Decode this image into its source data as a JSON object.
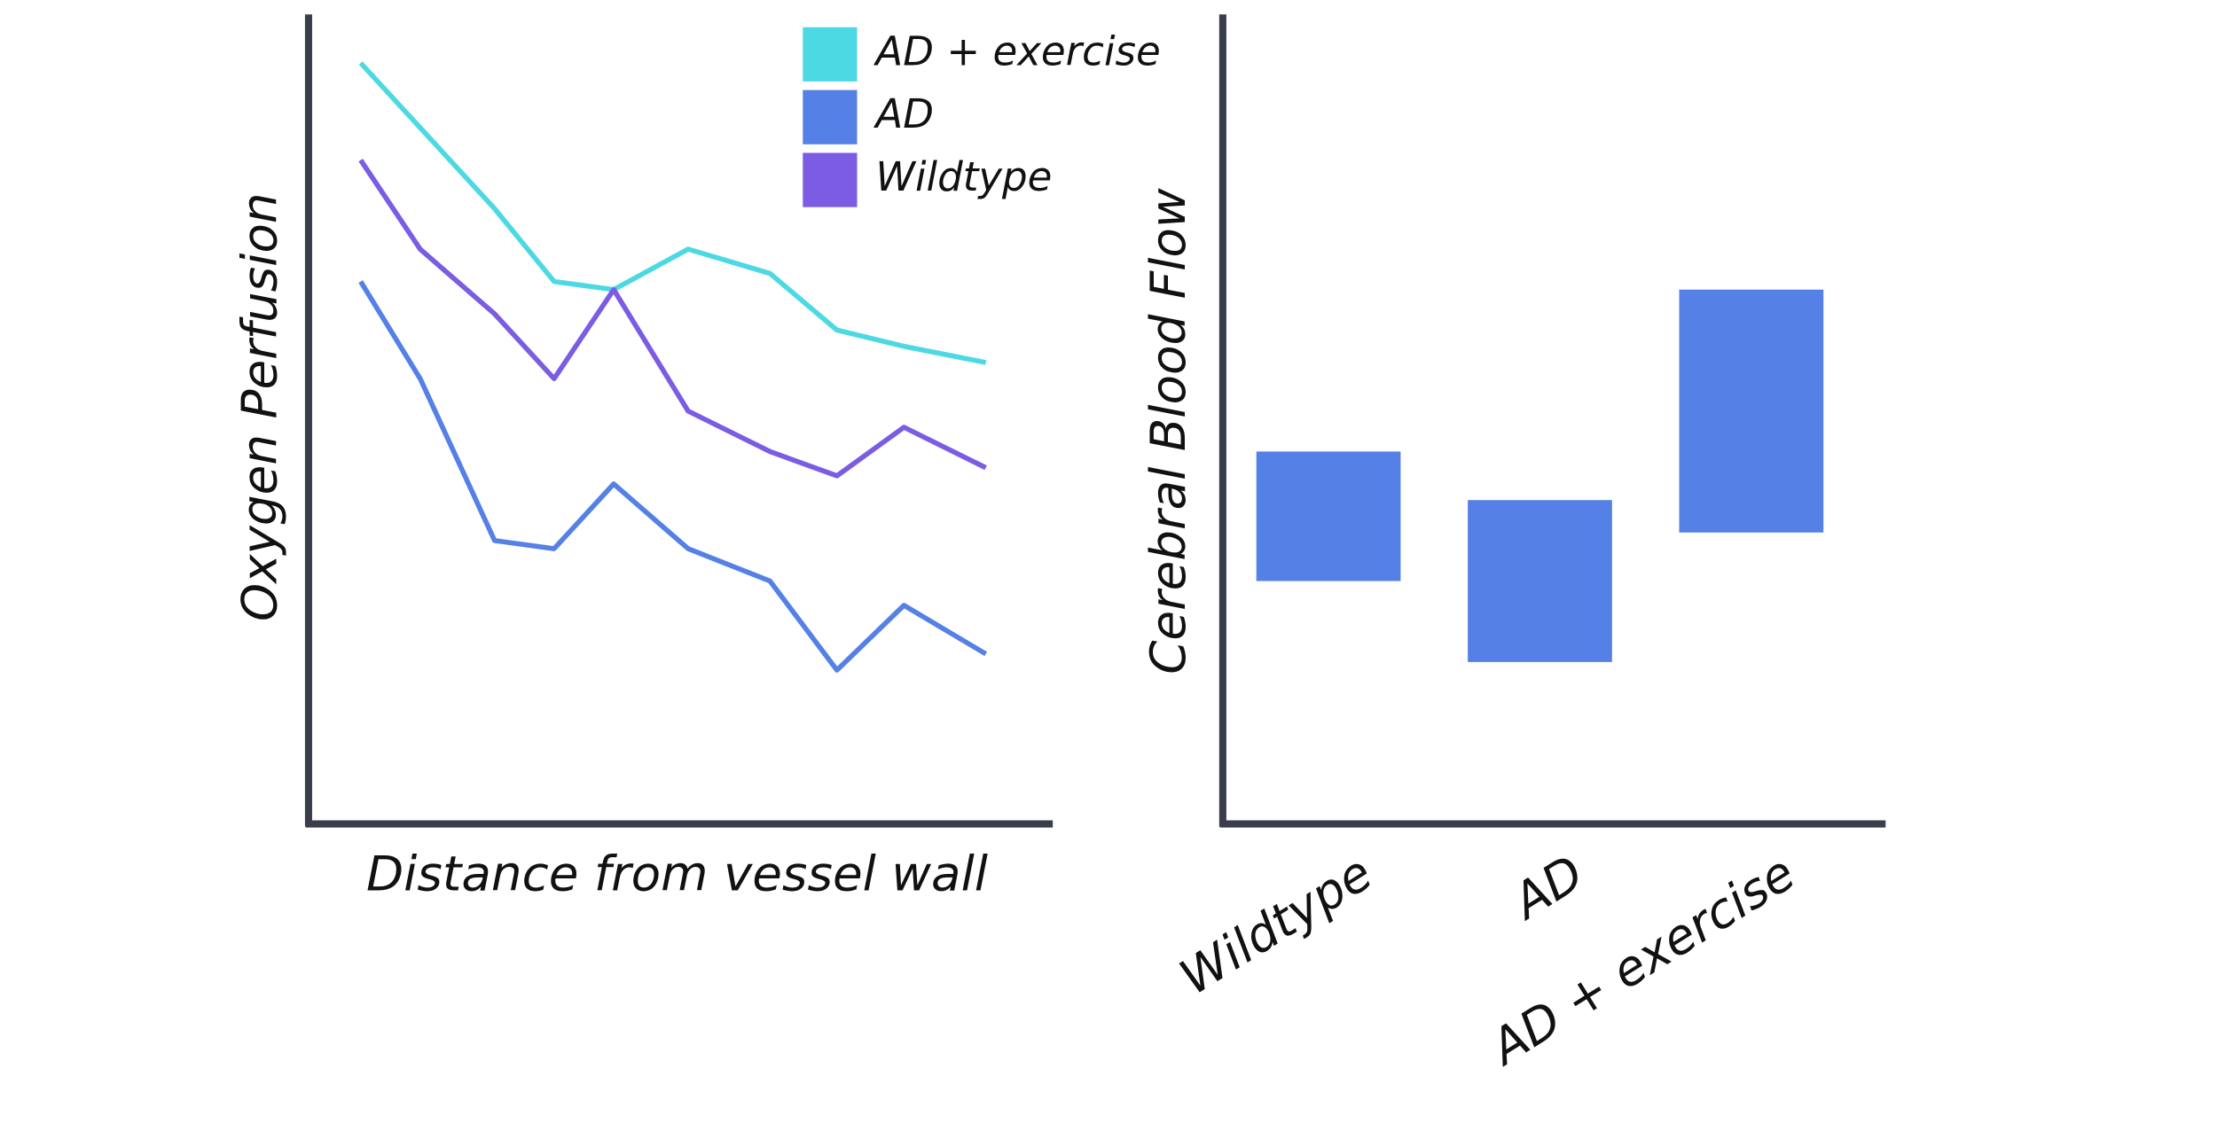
{
  "chart_data": [
    {
      "type": "line",
      "x_label": "Distance from vessel wall",
      "y_label": "Oxygen Perfusion",
      "x": [
        7,
        15,
        25,
        33,
        41,
        51,
        62,
        71,
        80,
        91
      ],
      "xlim": [
        0,
        100
      ],
      "ylim": [
        0,
        100
      ],
      "legend": "top-right",
      "series": [
        {
          "name": "AD + exercise",
          "color": "#4dd9e3",
          "values": [
            94,
            86,
            76,
            67,
            66,
            71,
            68,
            61,
            59,
            57
          ]
        },
        {
          "name": "AD",
          "color": "#5580e6",
          "values": [
            67,
            55,
            35,
            34,
            42,
            34,
            30,
            19,
            27,
            21
          ]
        },
        {
          "name": "Wildtype",
          "color": "#7b5ce3",
          "values": [
            82,
            71,
            63,
            55,
            66,
            51,
            46,
            43,
            49,
            44
          ]
        }
      ]
    },
    {
      "type": "floating-bar",
      "y_label": "Cerebral Blood Flow",
      "categories": [
        "Wildtype",
        "AD",
        "AD + exercise"
      ],
      "values": [
        [
          30,
          46
        ],
        [
          20,
          40
        ],
        [
          36,
          66
        ]
      ],
      "color": "#5580e6",
      "ylim": [
        0,
        100
      ]
    }
  ]
}
